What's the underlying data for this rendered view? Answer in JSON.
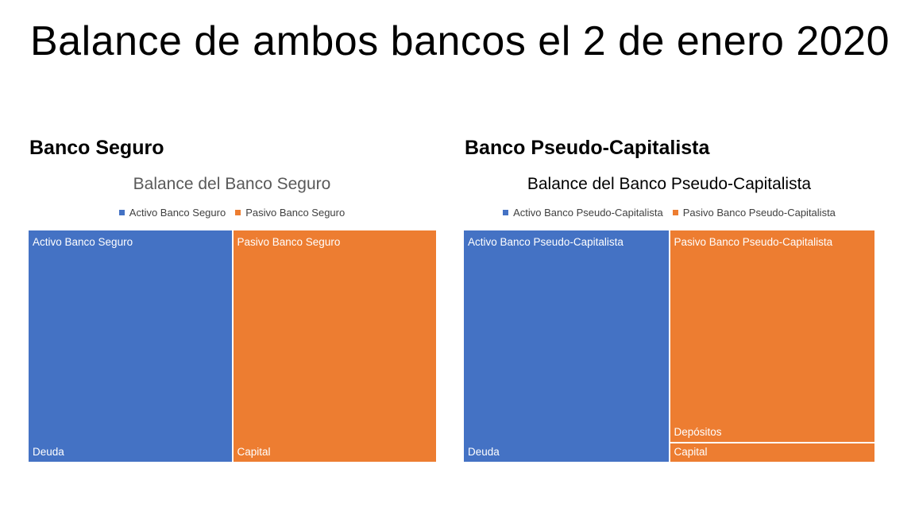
{
  "slide": {
    "title": "Balance de ambos bancos el 2 de enero 2020"
  },
  "left": {
    "heading": "Banco Seguro"
  },
  "right": {
    "heading": "Banco Pseudo-Capitalista"
  },
  "colors": {
    "activo": "#4472C4",
    "pasivo": "#ED7D31",
    "title_left": "#595959",
    "title_right": "#000000"
  },
  "chart_data": [
    {
      "type": "treemap",
      "title": "Balance del Banco Seguro",
      "legend": [
        "Activo Banco Seguro",
        "Pasivo Banco Seguro"
      ],
      "legend_position": "top",
      "series": [
        {
          "name": "Activo Banco Seguro",
          "color": "#4472C4",
          "children": [
            {
              "name": "Deuda",
              "value": 100
            }
          ]
        },
        {
          "name": "Pasivo Banco Seguro",
          "color": "#ED7D31",
          "children": [
            {
              "name": "Capital",
              "value": 100
            }
          ]
        }
      ]
    },
    {
      "type": "treemap",
      "title": "Balance del Banco Pseudo-Capitalista",
      "legend": [
        "Activo Banco Pseudo-Capitalista",
        "Pasivo Banco Pseudo-Capitalista"
      ],
      "legend_position": "top",
      "series": [
        {
          "name": "Activo Banco Pseudo-Capitalista",
          "color": "#4472C4",
          "children": [
            {
              "name": "Deuda",
              "value": 100
            }
          ]
        },
        {
          "name": "Pasivo Banco Pseudo-Capitalista",
          "color": "#ED7D31",
          "children": [
            {
              "name": "Depósitos",
              "value": 92
            },
            {
              "name": "Capital",
              "value": 8
            }
          ]
        }
      ]
    }
  ]
}
